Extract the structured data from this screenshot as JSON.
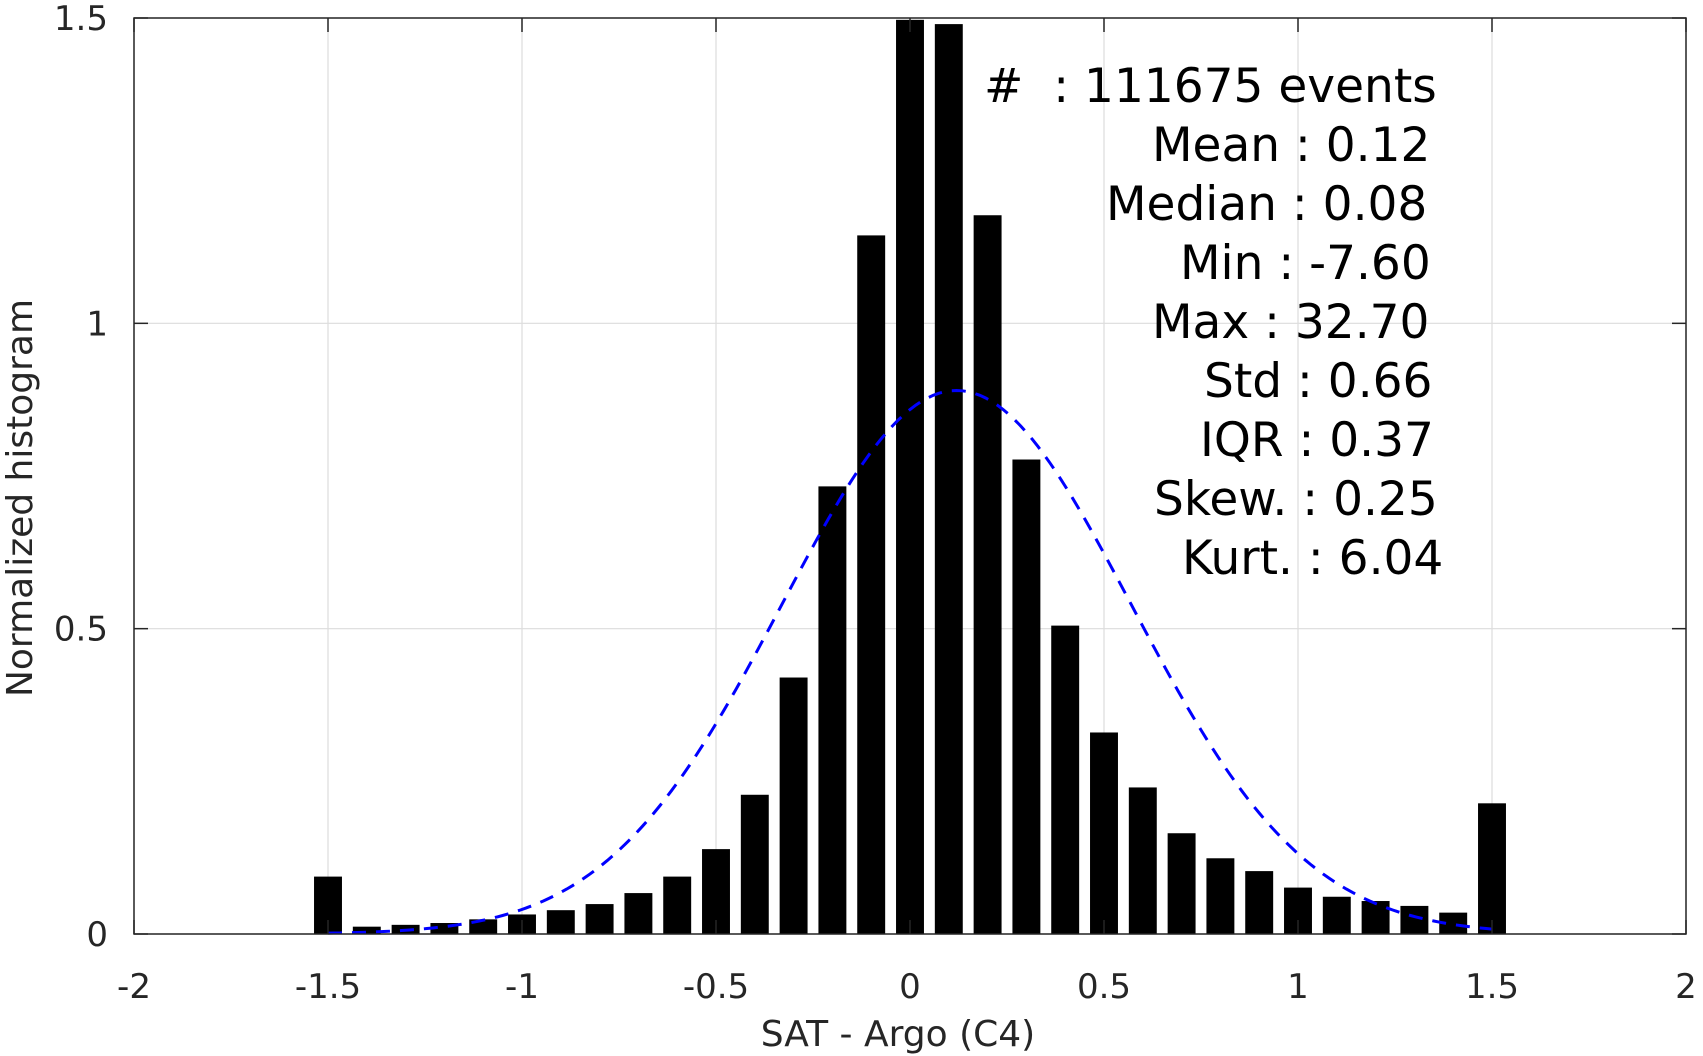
{
  "chart_data": {
    "type": "bar",
    "xlabel": "SAT - Argo (C4)",
    "ylabel": "Normalized histogram",
    "xlim": [
      -2,
      2
    ],
    "ylim": [
      0,
      1.5
    ],
    "xticks": [
      -2,
      -1.5,
      -1,
      -0.5,
      0,
      0.5,
      1,
      1.5,
      2
    ],
    "xtick_labels": [
      "-2",
      "-1.5",
      "-1",
      "-0.5",
      "0",
      "0.5",
      "1",
      "1.5",
      "2"
    ],
    "yticks": [
      0,
      0.5,
      1,
      1.5
    ],
    "ytick_labels": [
      "0",
      "0.5",
      "1",
      "1.5"
    ],
    "grid": true,
    "bar_color": "#000000",
    "bins": [
      -1.5,
      -1.4,
      -1.3,
      -1.2,
      -1.1,
      -1.0,
      -0.9,
      -0.8,
      -0.7,
      -0.6,
      -0.5,
      -0.4,
      -0.3,
      -0.2,
      -0.1,
      0.0,
      0.1,
      0.2,
      0.3,
      0.4,
      0.5,
      0.6,
      0.7,
      0.8,
      0.9,
      1.0,
      1.1,
      1.2,
      1.3,
      1.4,
      1.5
    ],
    "values": [
      0.094,
      0.012,
      0.015,
      0.018,
      0.024,
      0.032,
      0.039,
      0.049,
      0.067,
      0.094,
      0.139,
      0.228,
      0.42,
      0.733,
      1.144,
      1.497,
      1.49,
      1.177,
      0.777,
      0.505,
      0.33,
      0.24,
      0.165,
      0.124,
      0.103,
      0.076,
      0.061,
      0.054,
      0.046,
      0.035,
      0.214
    ],
    "fit": {
      "style": "dashed",
      "color": "#0000ff",
      "mean": 0.12,
      "std": 0.45,
      "peak": 0.89,
      "x_range": [
        -1.5,
        1.5
      ]
    },
    "annotation_lines": [
      "#  : 111675 events",
      "Mean : 0.12",
      "Median : 0.08",
      "Min : -7.60",
      "Max : 32.70",
      "Std : 0.66",
      "IQR : 0.37",
      "Skew. : 0.25",
      "Kurt. : 6.04"
    ]
  }
}
